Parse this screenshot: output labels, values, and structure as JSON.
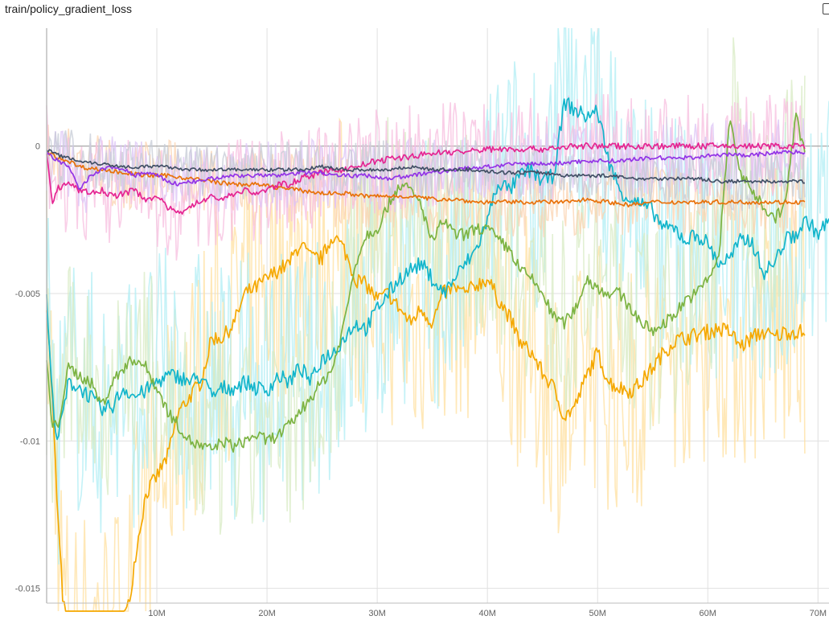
{
  "header": {
    "title": "train/policy_gradient_loss"
  },
  "chart_data": {
    "type": "line",
    "title": "train/policy_gradient_loss",
    "xlabel": "",
    "ylabel": "",
    "xlim": [
      0,
      71000000
    ],
    "ylim": [
      -0.0155,
      0.004
    ],
    "x_ticks": [
      {
        "value": 10000000,
        "label": "10M"
      },
      {
        "value": 20000000,
        "label": "20M"
      },
      {
        "value": 30000000,
        "label": "30M"
      },
      {
        "value": 40000000,
        "label": "40M"
      },
      {
        "value": 50000000,
        "label": "50M"
      },
      {
        "value": 60000000,
        "label": "60M"
      },
      {
        "value": 70000000,
        "label": "70M"
      }
    ],
    "y_ticks": [
      {
        "value": 0,
        "label": "0"
      },
      {
        "value": -0.005,
        "label": "-0.005"
      },
      {
        "value": -0.01,
        "label": "-0.01"
      },
      {
        "value": -0.015,
        "label": "-0.015"
      }
    ],
    "grid": true,
    "series": [
      {
        "color": "#f5a800",
        "raw_color": "#ffe0a0",
        "x": [
          0,
          0.5,
          1,
          1.5,
          2,
          3,
          4,
          5,
          6,
          7,
          7.5,
          8,
          9,
          10,
          11,
          12,
          13,
          14,
          15,
          16,
          17,
          18,
          19,
          20,
          21,
          22,
          23,
          24,
          25,
          26,
          27,
          28,
          29,
          30,
          31,
          32,
          33,
          34,
          35,
          36,
          37,
          38,
          39,
          40,
          41,
          42,
          43,
          44,
          45,
          46,
          47,
          48,
          49,
          50,
          51,
          52,
          53,
          54,
          55,
          56,
          57,
          58,
          59,
          60,
          61,
          62,
          63,
          64,
          65,
          66,
          67,
          68,
          68.8
        ],
        "y": [
          -0.0053,
          -0.0085,
          -0.0125,
          -0.0155,
          -0.0165,
          -0.0165,
          -0.0165,
          -0.0165,
          -0.0165,
          -0.016,
          -0.0155,
          -0.014,
          -0.0118,
          -0.0112,
          -0.0105,
          -0.009,
          -0.0085,
          -0.008,
          -0.0065,
          -0.0065,
          -0.006,
          -0.005,
          -0.0048,
          -0.0045,
          -0.0042,
          -0.004,
          -0.0033,
          -0.0038,
          -0.0038,
          -0.003,
          -0.0035,
          -0.0045,
          -0.0047,
          -0.0052,
          -0.005,
          -0.0055,
          -0.006,
          -0.0055,
          -0.006,
          -0.005,
          -0.0048,
          -0.005,
          -0.0047,
          -0.0045,
          -0.0052,
          -0.0058,
          -0.0067,
          -0.007,
          -0.0077,
          -0.0082,
          -0.0092,
          -0.0088,
          -0.0078,
          -0.007,
          -0.008,
          -0.0082,
          -0.0083,
          -0.008,
          -0.0075,
          -0.007,
          -0.0066,
          -0.0065,
          -0.0064,
          -0.0063,
          -0.0062,
          -0.0063,
          -0.0068,
          -0.0065,
          -0.0063,
          -0.0065,
          -0.0063,
          -0.0063,
          -0.0063
        ]
      },
      {
        "color": "#12b5cb",
        "raw_color": "#b0eef4",
        "x": [
          0,
          0.5,
          1,
          2,
          3,
          4,
          5,
          6,
          7,
          8,
          9,
          10,
          11,
          12,
          13,
          14,
          15,
          16,
          17,
          18,
          19,
          20,
          21,
          22,
          23,
          24,
          25,
          26,
          27,
          28,
          29,
          30,
          31,
          32,
          33,
          34,
          35,
          36,
          37,
          38,
          39,
          40,
          41,
          42,
          43,
          44,
          45,
          46,
          47,
          48,
          49,
          50,
          51,
          52,
          53,
          54,
          55,
          56,
          57,
          58,
          59,
          60,
          61,
          62,
          63,
          64,
          65,
          66,
          67,
          68,
          69,
          70,
          71
        ],
        "y": [
          -0.0052,
          -0.0085,
          -0.01,
          -0.008,
          -0.0082,
          -0.0085,
          -0.009,
          -0.0088,
          -0.0082,
          -0.0085,
          -0.0083,
          -0.008,
          -0.0078,
          -0.0078,
          -0.008,
          -0.0078,
          -0.0085,
          -0.0082,
          -0.0082,
          -0.008,
          -0.0082,
          -0.0083,
          -0.0078,
          -0.008,
          -0.0075,
          -0.008,
          -0.0072,
          -0.007,
          -0.0065,
          -0.006,
          -0.0062,
          -0.0055,
          -0.005,
          -0.0045,
          -0.0042,
          -0.004,
          -0.0045,
          -0.005,
          -0.0045,
          -0.004,
          -0.0035,
          -0.0025,
          -0.0012,
          -0.0015,
          -0.001,
          -0.0008,
          -0.0012,
          -0.001,
          0.0015,
          0.0012,
          0.001,
          0.0012,
          -0.0005,
          -0.0015,
          -0.0018,
          -0.002,
          -0.0022,
          -0.0028,
          -0.0028,
          -0.0032,
          -0.003,
          -0.0033,
          -0.004,
          -0.0038,
          -0.0032,
          -0.0032,
          -0.0043,
          -0.004,
          -0.0032,
          -0.003,
          -0.0025,
          -0.003,
          -0.0025
        ]
      },
      {
        "color": "#7cb342",
        "raw_color": "#d8ebc4",
        "x": [
          0,
          0.5,
          1,
          2,
          3,
          4,
          5,
          6,
          7,
          8,
          9,
          10,
          11,
          12,
          13,
          14,
          15,
          16,
          17,
          18,
          19,
          20,
          21,
          22,
          23,
          24,
          25,
          26,
          27,
          28,
          29,
          30,
          31,
          32,
          33,
          34,
          35,
          36,
          37,
          38,
          39,
          40,
          41,
          42,
          43,
          44,
          45,
          46,
          47,
          48,
          49,
          50,
          51,
          52,
          53,
          54,
          55,
          56,
          57,
          58,
          59,
          60,
          61,
          62,
          63,
          64,
          65,
          66,
          67,
          68,
          68.8
        ],
        "y": [
          -0.0073,
          -0.0095,
          -0.0095,
          -0.0075,
          -0.0078,
          -0.008,
          -0.0088,
          -0.008,
          -0.0075,
          -0.0072,
          -0.0075,
          -0.0082,
          -0.009,
          -0.0095,
          -0.01,
          -0.0102,
          -0.0103,
          -0.01,
          -0.0102,
          -0.01,
          -0.0098,
          -0.01,
          -0.0098,
          -0.0095,
          -0.009,
          -0.0085,
          -0.008,
          -0.0075,
          -0.006,
          -0.004,
          -0.003,
          -0.0028,
          -0.002,
          -0.0013,
          -0.0015,
          -0.002,
          -0.0033,
          -0.0025,
          -0.003,
          -0.003,
          -0.0028,
          -0.0028,
          -0.0032,
          -0.0035,
          -0.0042,
          -0.0045,
          -0.005,
          -0.0058,
          -0.006,
          -0.0055,
          -0.0045,
          -0.0048,
          -0.005,
          -0.005,
          -0.0055,
          -0.006,
          -0.0063,
          -0.006,
          -0.0057,
          -0.0052,
          -0.005,
          -0.0045,
          -0.0038,
          0.001,
          -0.001,
          -0.0015,
          -0.002,
          -0.0025,
          -0.002,
          0.001,
          -0.0002
        ]
      },
      {
        "color": "#e8710a",
        "raw_color": "#fbd3b0",
        "x": [
          0,
          1,
          2,
          3,
          5,
          7,
          9,
          11,
          13,
          15,
          17,
          19,
          21,
          23,
          25,
          27,
          29,
          31,
          33,
          35,
          37,
          39,
          41,
          43,
          45,
          47,
          49,
          51,
          53,
          55,
          57,
          59,
          61,
          63,
          65,
          67,
          68.8
        ],
        "y": [
          -0.0002,
          -0.0004,
          -0.0005,
          -0.0007,
          -0.0008,
          -0.0009,
          -0.001,
          -0.001,
          -0.0011,
          -0.0012,
          -0.0013,
          -0.0013,
          -0.0014,
          -0.0015,
          -0.0016,
          -0.0016,
          -0.0017,
          -0.0017,
          -0.0017,
          -0.0018,
          -0.0018,
          -0.0019,
          -0.0019,
          -0.0019,
          -0.0019,
          -0.0019,
          -0.0018,
          -0.0019,
          -0.002,
          -0.0019,
          -0.0019,
          -0.0019,
          -0.0019,
          -0.0019,
          -0.0019,
          -0.0019,
          -0.0019
        ]
      },
      {
        "color": "#e52592",
        "raw_color": "#f7bedf",
        "x": [
          0,
          0.5,
          1,
          2,
          3,
          4,
          5,
          6,
          7,
          8,
          9,
          10,
          11,
          12,
          13,
          14,
          15,
          16,
          17,
          18,
          19,
          20,
          21,
          22,
          23,
          24,
          25,
          26,
          27,
          28,
          29,
          30,
          32,
          34,
          36,
          38,
          40,
          42,
          45,
          48,
          51,
          55,
          60,
          65,
          68.8
        ],
        "y": [
          -0.0002,
          -0.002,
          -0.0014,
          -0.0013,
          -0.0015,
          -0.0016,
          -0.0015,
          -0.0017,
          -0.0016,
          -0.0015,
          -0.0018,
          -0.0017,
          -0.0021,
          -0.0023,
          -0.002,
          -0.0019,
          -0.0017,
          -0.0018,
          -0.0016,
          -0.0015,
          -0.0016,
          -0.0015,
          -0.0013,
          -0.0013,
          -0.0011,
          -0.001,
          -0.0009,
          -0.0008,
          -0.0008,
          -0.0007,
          -0.0006,
          -0.0005,
          -0.0004,
          -0.0003,
          -0.0002,
          -0.0002,
          -0.0001,
          -0.0001,
          -0.0001,
          0.0,
          0.0,
          0.0,
          0.0,
          0.0,
          0.0
        ]
      },
      {
        "color": "#9334e6",
        "raw_color": "#dcc4f6",
        "x": [
          0,
          1,
          2,
          3,
          4,
          5,
          6,
          7,
          8,
          9,
          10,
          11,
          12,
          13,
          14,
          15,
          17,
          19,
          21,
          23,
          25,
          27,
          29,
          31,
          33,
          35,
          37,
          40,
          43,
          46,
          49,
          52,
          55,
          58,
          61,
          64,
          67,
          68.8
        ],
        "y": [
          -0.0002,
          -0.0005,
          -0.0007,
          -0.0015,
          -0.001,
          -0.0008,
          -0.0007,
          -0.0008,
          -0.001,
          -0.0009,
          -0.001,
          -0.0012,
          -0.0013,
          -0.0012,
          -0.0012,
          -0.0011,
          -0.001,
          -0.001,
          -0.001,
          -0.0009,
          -0.0009,
          -0.001,
          -0.001,
          -0.0011,
          -0.001,
          -0.0009,
          -0.0008,
          -0.0007,
          -0.0006,
          -0.0006,
          -0.0005,
          -0.0005,
          -0.0004,
          -0.0004,
          -0.0003,
          -0.0003,
          -0.0002,
          -0.0002
        ]
      },
      {
        "color": "#425066",
        "raw_color": "#c6cbd6",
        "x": [
          0,
          1,
          2,
          3,
          5,
          7,
          9,
          11,
          13,
          15,
          17,
          19,
          21,
          23,
          25,
          27,
          29,
          31,
          33,
          35,
          37,
          39,
          41,
          43,
          45,
          47,
          49,
          51,
          53,
          55,
          57,
          59,
          61,
          63,
          65,
          67,
          68.8
        ],
        "y": [
          -0.0001,
          -0.0003,
          -0.0004,
          -0.0005,
          -0.0006,
          -0.0007,
          -0.0007,
          -0.0007,
          -0.0008,
          -0.0008,
          -0.0008,
          -0.0008,
          -0.0008,
          -0.0008,
          -0.0007,
          -0.0008,
          -0.0008,
          -0.0008,
          -0.0007,
          -0.0008,
          -0.0008,
          -0.0008,
          -0.0009,
          -0.0009,
          -0.0009,
          -0.001,
          -0.001,
          -0.001,
          -0.0011,
          -0.0011,
          -0.0011,
          -0.0011,
          -0.0012,
          -0.0012,
          -0.0012,
          -0.0012,
          -0.0012
        ]
      }
    ]
  }
}
